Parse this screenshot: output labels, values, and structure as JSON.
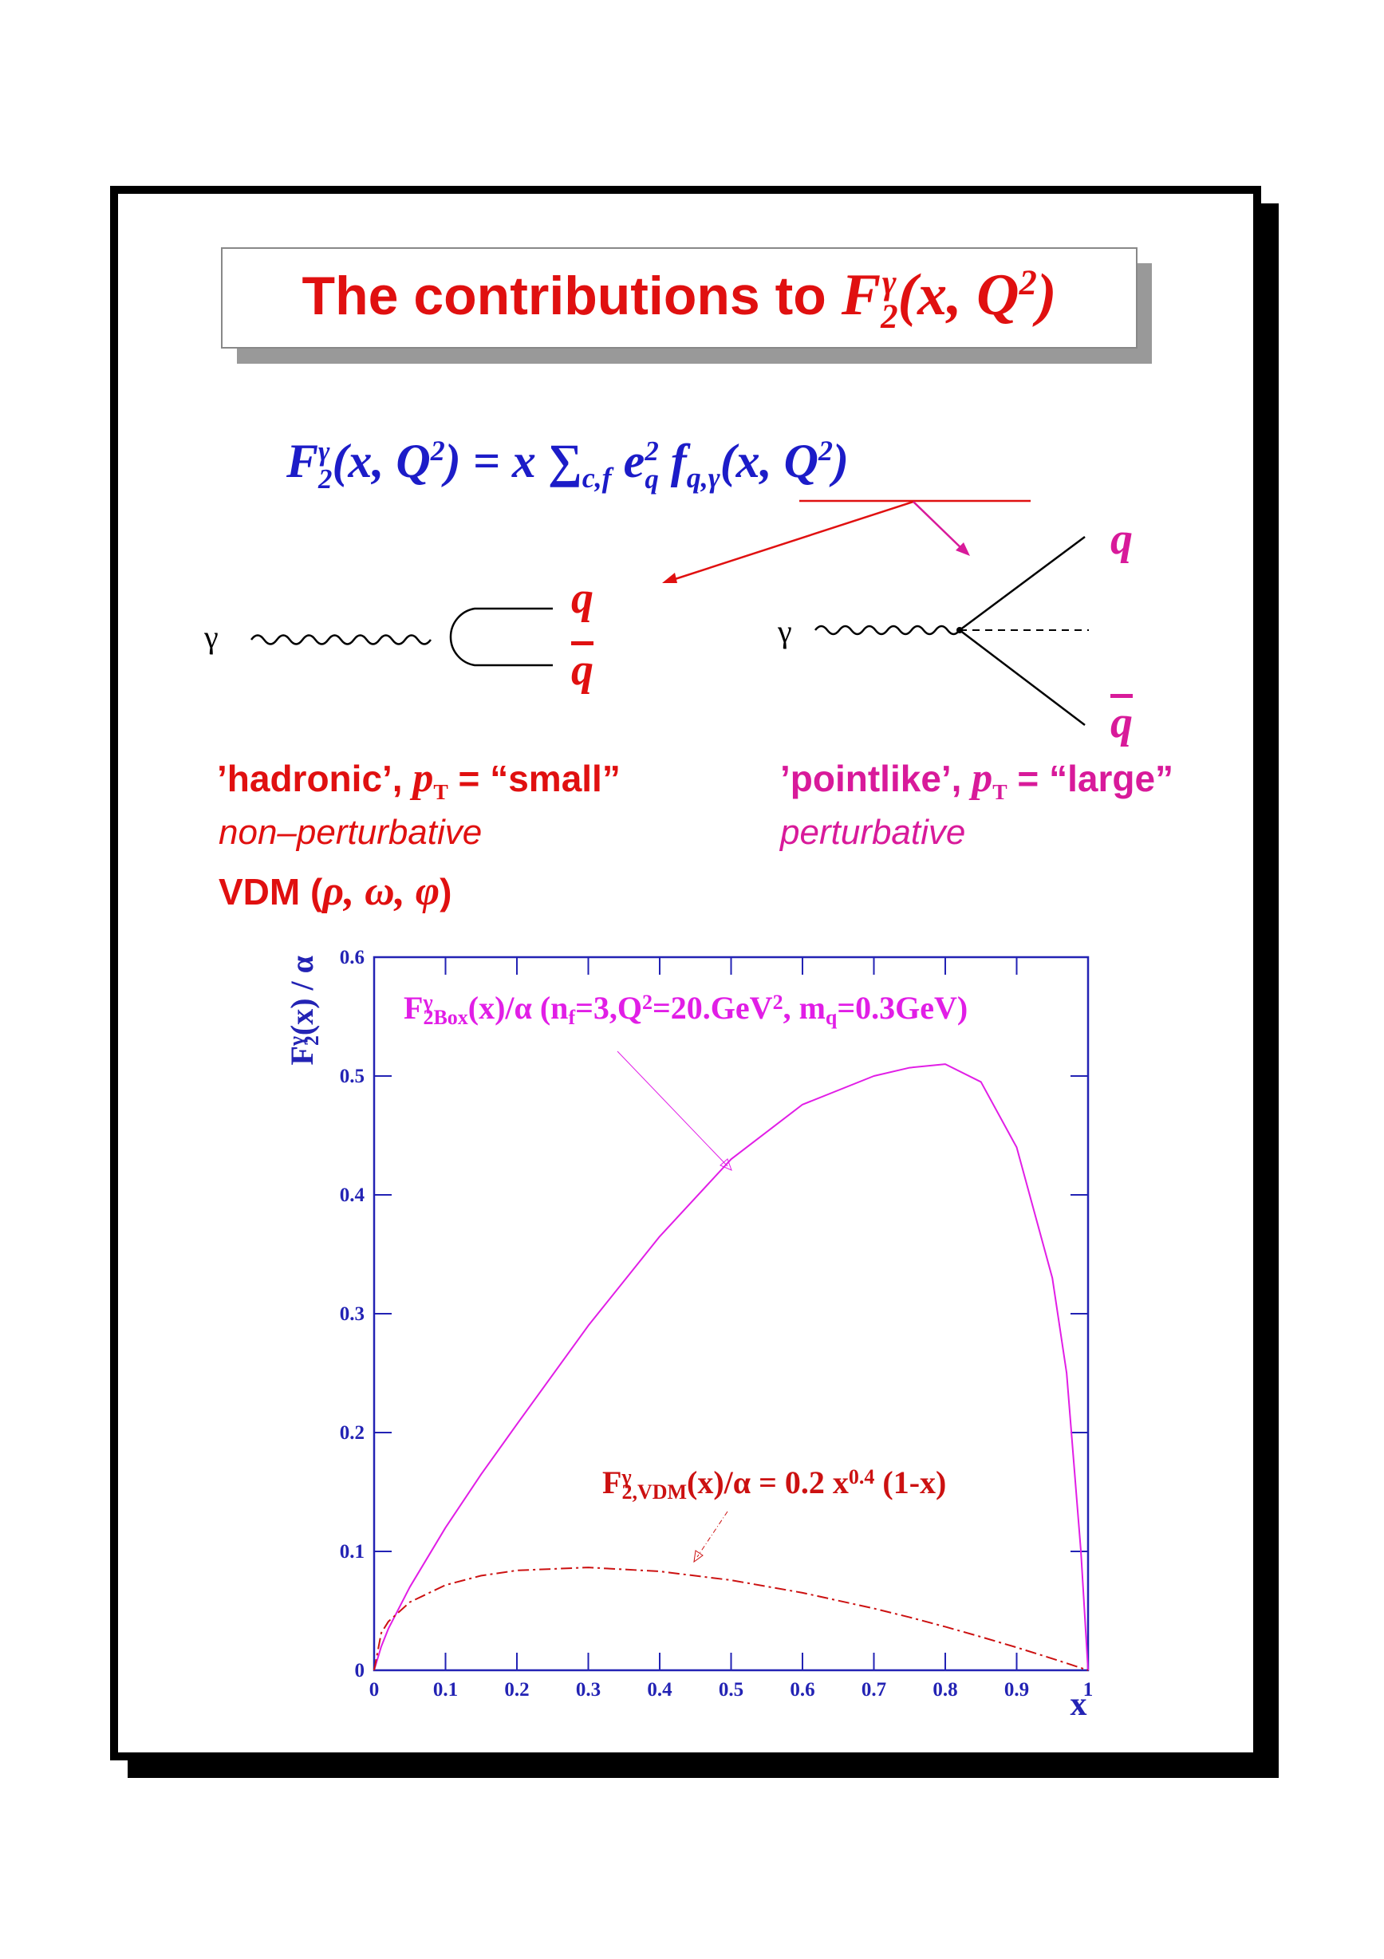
{
  "title": [
    "The contributions to",
    "F",
    "γ",
    "2",
    "(x, Q",
    "2",
    ")"
  ],
  "formula": [
    "F",
    "γ",
    "2",
    "(x, Q",
    "2",
    ") = x ∑",
    "c,f",
    "e",
    "2",
    "q",
    "f",
    "q,γ",
    "(x, Q",
    "2",
    ")"
  ],
  "left_diagram": {
    "photon": "γ",
    "quark": "q",
    "antiquark": "q"
  },
  "right_diagram": {
    "photon": "γ",
    "quark": "q",
    "antiquark": "q"
  },
  "hadronic": [
    "’hadronic’, ",
    "p",
    "T",
    " = “small”"
  ],
  "non_perturbative": "non–perturbative",
  "vdm": [
    "VDM (",
    "ρ, ω, φ",
    ")"
  ],
  "pointlike": [
    "’pointlike’, ",
    "p",
    "T",
    " = “large”"
  ],
  "perturbative": "perturbative",
  "chart_data": {
    "type": "line",
    "axis_color": "#2323b4",
    "y_label": [
      {
        "text": "F"
      },
      {
        "text": "γ",
        "pos": "sup"
      },
      {
        "text": "2",
        "pos": "sub"
      },
      {
        "text": "(x) / α"
      }
    ],
    "x_label": "x",
    "xlim": [
      0,
      1
    ],
    "ylim": [
      0,
      0.6
    ],
    "xticks": [
      0,
      0.1,
      0.2,
      0.3,
      0.4,
      0.5,
      0.6,
      0.7,
      0.8,
      0.9,
      1
    ],
    "yticks": [
      0,
      0.1,
      0.2,
      0.3,
      0.4,
      0.5,
      0.6
    ],
    "x": [
      0,
      0.01,
      0.02,
      0.05,
      0.1,
      0.15,
      0.2,
      0.3,
      0.4,
      0.5,
      0.6,
      0.7,
      0.75,
      0.8,
      0.85,
      0.9,
      0.95,
      0.97,
      0.99,
      1
    ],
    "series": [
      {
        "color": "#e11ee6",
        "values": [
          0,
          0.02,
          0.035,
          0.07,
          0.12,
          0.165,
          0.207,
          0.29,
          0.365,
          0.43,
          0.476,
          0.5,
          0.507,
          0.51,
          0.495,
          0.44,
          0.33,
          0.25,
          0.1,
          0
        ],
        "annotation": [
          {
            "text": "F"
          },
          {
            "text": "γ",
            "pos": "sup"
          },
          {
            "text": "2Box",
            "pos": "sub"
          },
          {
            "text": "(x)/α (n"
          },
          {
            "text": "f",
            "pos": "sub"
          },
          {
            "text": "=3,Q"
          },
          {
            "text": "2",
            "pos": "sup"
          },
          {
            "text": "=20.GeV"
          },
          {
            "text": "2",
            "pos": "sup"
          },
          {
            "text": ", m"
          },
          {
            "text": "q",
            "pos": "sub"
          },
          {
            "text": "=0.3GeV)"
          }
        ]
      },
      {
        "color": "#cc1111",
        "dash": "dash-dot",
        "values": [
          0,
          0.0314,
          0.041,
          0.0573,
          0.0717,
          0.0796,
          0.084,
          0.0865,
          0.0832,
          0.0758,
          0.0652,
          0.052,
          0.0446,
          0.0366,
          0.0281,
          0.0192,
          0.0098,
          0.0059,
          0.002,
          0
        ],
        "annotation": [
          {
            "text": "F"
          },
          {
            "text": "γ",
            "pos": "sup"
          },
          {
            "text": "2,VDM",
            "pos": "sub"
          },
          {
            "text": "(x)/α = 0.2 x"
          },
          {
            "text": "0.4",
            "pos": "sup"
          },
          {
            "text": " (1-x)"
          }
        ]
      }
    ]
  }
}
